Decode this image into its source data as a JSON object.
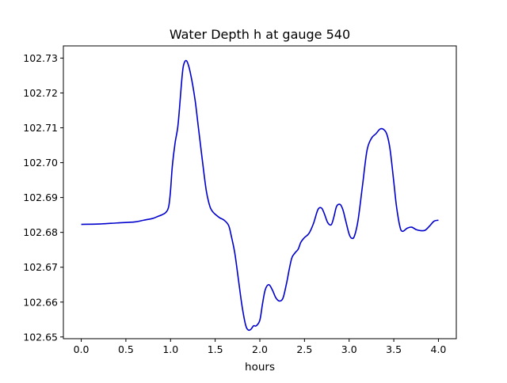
{
  "chart_data": {
    "type": "line",
    "title": "Water Depth h at gauge 540",
    "xlabel": "hours",
    "ylabel": "",
    "xlim": [
      -0.2,
      4.2
    ],
    "ylim": [
      102.6495,
      102.7335
    ],
    "xticks": [
      0.0,
      0.5,
      1.0,
      1.5,
      2.0,
      2.5,
      3.0,
      3.5,
      4.0
    ],
    "xtick_labels": [
      "0.0",
      "0.5",
      "1.0",
      "1.5",
      "2.0",
      "2.5",
      "3.0",
      "3.5",
      "4.0"
    ],
    "yticks": [
      102.65,
      102.66,
      102.67,
      102.68,
      102.69,
      102.7,
      102.71,
      102.72,
      102.73
    ],
    "ytick_labels": [
      "102.65",
      "102.66",
      "102.67",
      "102.68",
      "102.69",
      "102.70",
      "102.71",
      "102.72",
      "102.73"
    ],
    "grid": false,
    "line_color": "#0000cc",
    "series": [
      {
        "x": [
          0.0,
          0.2,
          0.4,
          0.6,
          0.7,
          0.8,
          0.85,
          0.9,
          0.95,
          0.98,
          1.0,
          1.02,
          1.05,
          1.08,
          1.1,
          1.12,
          1.14,
          1.16,
          1.18,
          1.2,
          1.22,
          1.25,
          1.28,
          1.31,
          1.35,
          1.4,
          1.44,
          1.47,
          1.5,
          1.55,
          1.6,
          1.65,
          1.68,
          1.72,
          1.76,
          1.8,
          1.84,
          1.87,
          1.9,
          1.93,
          1.96,
          2.0,
          2.03,
          2.06,
          2.1,
          2.14,
          2.18,
          2.22,
          2.26,
          2.3,
          2.33,
          2.36,
          2.4,
          2.43,
          2.46,
          2.5,
          2.55,
          2.6,
          2.65,
          2.69,
          2.72,
          2.76,
          2.8,
          2.83,
          2.86,
          2.9,
          2.93,
          2.96,
          3.0,
          3.03,
          3.06,
          3.1,
          3.15,
          3.2,
          3.25,
          3.3,
          3.35,
          3.4,
          3.43,
          3.46,
          3.5,
          3.53,
          3.57,
          3.6,
          3.65,
          3.7,
          3.75,
          3.8,
          3.85,
          3.9,
          3.95,
          4.0
        ],
        "y": [
          102.6823,
          102.6824,
          102.6827,
          102.683,
          102.6835,
          102.684,
          102.6845,
          102.685,
          102.6858,
          102.6875,
          102.692,
          102.699,
          102.7055,
          102.71,
          102.7155,
          102.722,
          102.7272,
          102.729,
          102.7292,
          102.728,
          102.726,
          102.722,
          102.717,
          102.7105,
          102.702,
          102.692,
          102.6875,
          102.686,
          102.6852,
          102.6842,
          102.6835,
          102.682,
          102.679,
          102.674,
          102.6665,
          102.659,
          102.6535,
          102.652,
          102.6522,
          102.6532,
          102.6532,
          102.6548,
          102.6595,
          102.6635,
          102.665,
          102.6635,
          102.6612,
          102.6603,
          102.6612,
          102.6655,
          102.6695,
          102.6728,
          102.6743,
          102.6752,
          102.6772,
          102.6785,
          102.6797,
          102.6825,
          102.6865,
          102.687,
          102.6855,
          102.6828,
          102.6822,
          102.6845,
          102.6875,
          102.688,
          102.6865,
          102.6835,
          102.6795,
          102.6783,
          102.679,
          102.6835,
          102.6935,
          102.7035,
          102.707,
          102.7083,
          102.7097,
          102.7092,
          102.7075,
          102.7035,
          102.6945,
          102.6875,
          102.6815,
          102.6803,
          102.6812,
          102.6815,
          102.6808,
          102.6805,
          102.6806,
          102.6818,
          102.6832,
          102.6835
        ]
      }
    ]
  }
}
